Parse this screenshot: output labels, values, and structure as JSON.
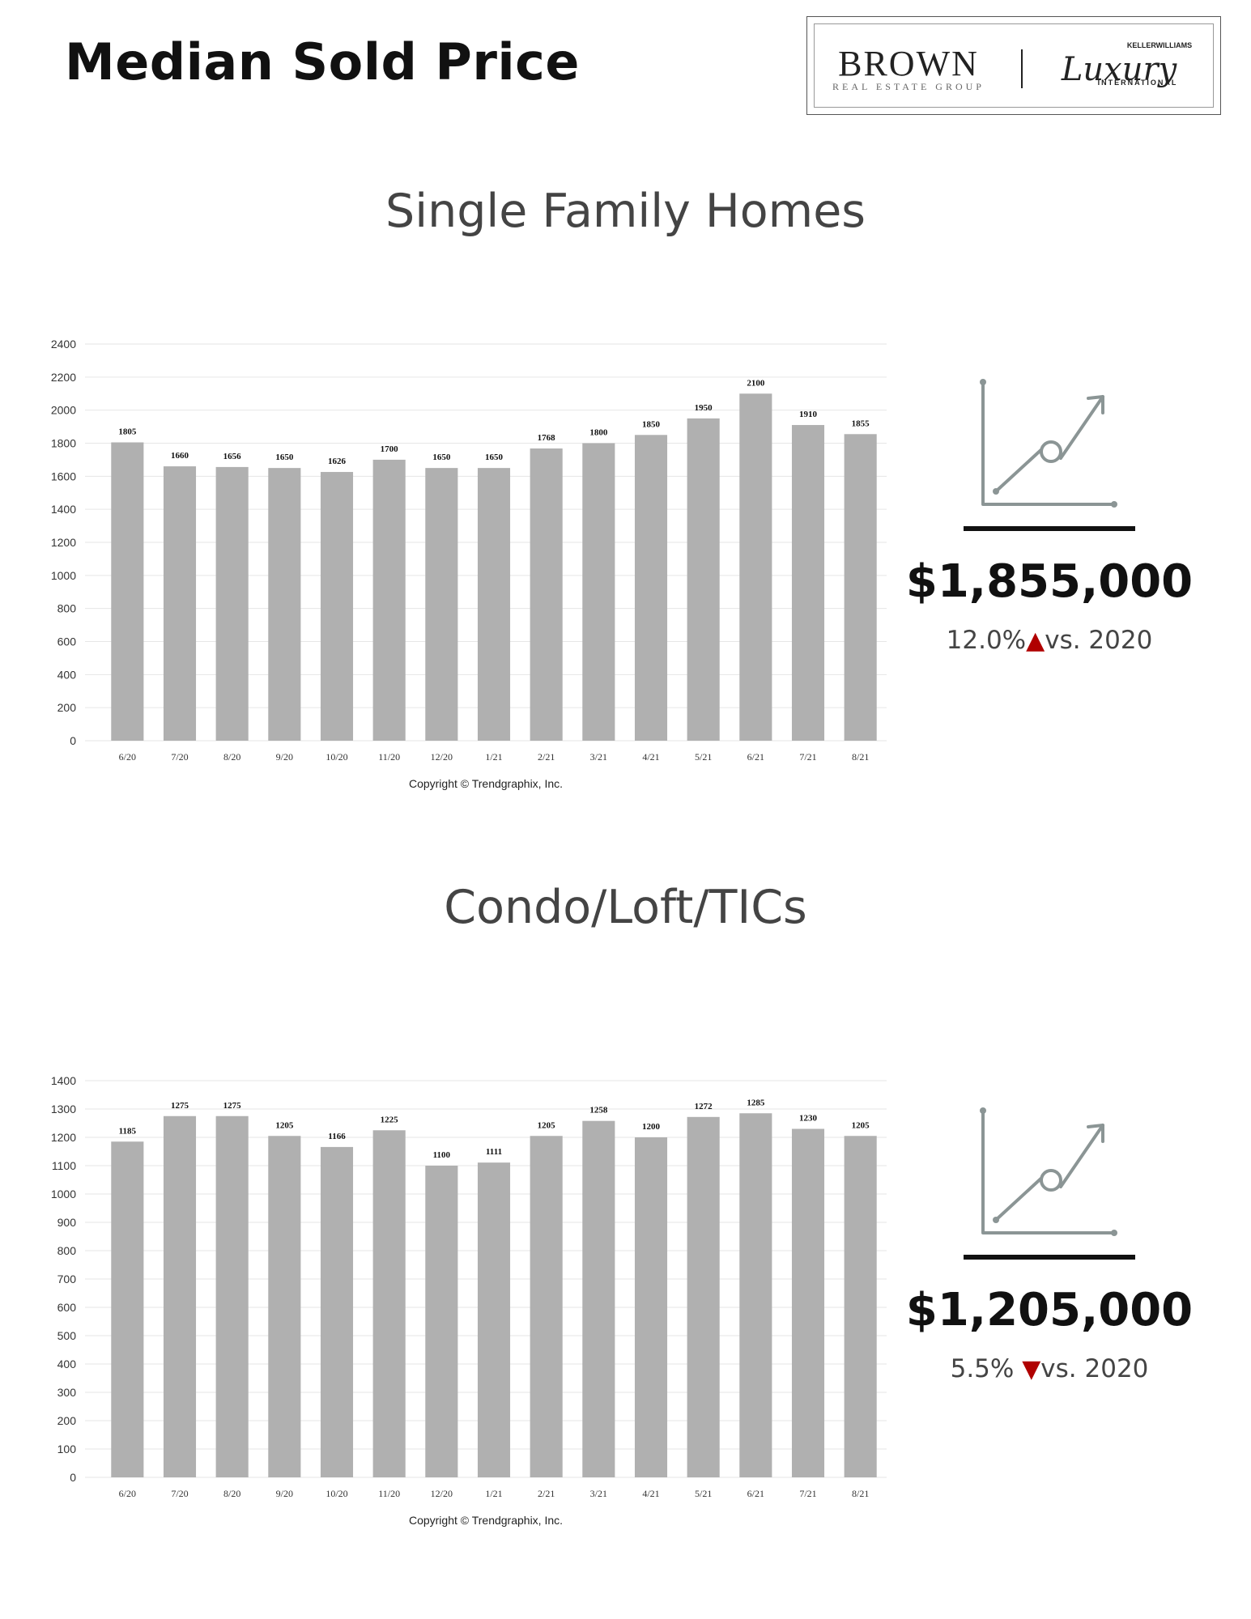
{
  "page": {
    "title": "Median Sold Price"
  },
  "logo": {
    "brand": "BROWN",
    "brand_sub": "REAL ESTATE GROUP",
    "partner_top": "KELLERWILLIAMS",
    "partner_main": "Luxury",
    "partner_bottom": "INTERNATIONAL"
  },
  "colors": {
    "bar": "#b0b0b0",
    "accent_red": "#b00000",
    "grid": "#e6e6e6"
  },
  "sections": [
    {
      "title": "Single Family Homes",
      "price": "$1,855,000",
      "change_pct": "12.0%",
      "change_direction": "up",
      "arrow": "▲",
      "change_suffix": "vs. 2020",
      "icon": "line-chart-trend-icon"
    },
    {
      "title": "Condo/Loft/TICs",
      "price": "$1,205,000",
      "change_pct": "5.5%",
      "change_direction": "down",
      "arrow": "▼",
      "change_suffix": "vs. 2020",
      "icon": "line-chart-trend-icon"
    }
  ],
  "chart_data": [
    {
      "type": "bar",
      "title": "",
      "categories": [
        "6/20",
        "7/20",
        "8/20",
        "9/20",
        "10/20",
        "11/20",
        "12/20",
        "1/21",
        "2/21",
        "3/21",
        "4/21",
        "5/21",
        "6/21",
        "7/21",
        "8/21"
      ],
      "values": [
        1805,
        1660,
        1656,
        1650,
        1626,
        1700,
        1650,
        1650,
        1768,
        1800,
        1850,
        1950,
        2100,
        1910,
        1855
      ],
      "ylim": [
        0,
        2400
      ],
      "yticks": [
        0,
        200,
        400,
        600,
        800,
        1000,
        1200,
        1400,
        1600,
        1800,
        2000,
        2200,
        2400
      ],
      "grid": true,
      "xlabel": "",
      "ylabel": "",
      "footer": "Copyright © Trendgraphix, Inc."
    },
    {
      "type": "bar",
      "title": "",
      "categories": [
        "6/20",
        "7/20",
        "8/20",
        "9/20",
        "10/20",
        "11/20",
        "12/20",
        "1/21",
        "2/21",
        "3/21",
        "4/21",
        "5/21",
        "6/21",
        "7/21",
        "8/21"
      ],
      "values": [
        1185,
        1275,
        1275,
        1205,
        1166,
        1225,
        1100,
        1111,
        1205,
        1258,
        1200,
        1272,
        1285,
        1230,
        1205
      ],
      "ylim": [
        0,
        1400
      ],
      "yticks": [
        0,
        100,
        200,
        300,
        400,
        500,
        600,
        700,
        800,
        900,
        1000,
        1100,
        1200,
        1300,
        1400
      ],
      "grid": true,
      "xlabel": "",
      "ylabel": "",
      "footer": "Copyright © Trendgraphix, Inc."
    }
  ]
}
